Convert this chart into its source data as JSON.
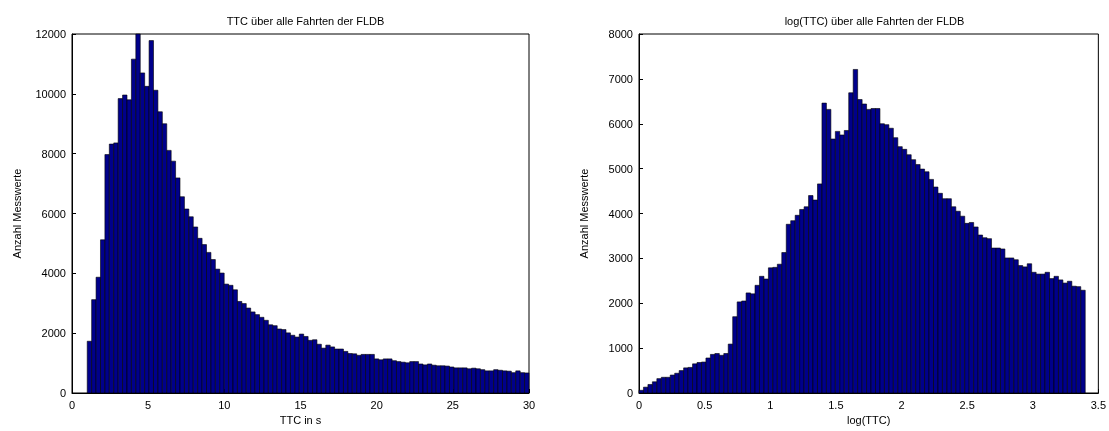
{
  "chart_data": [
    {
      "type": "histogram",
      "title": "TTC über alle Fahrten der FLDB",
      "xlabel": "TTC in s",
      "ylabel": "Anzahl Messwerte",
      "color": "#00008b",
      "grid": false,
      "bins": [
        1,
        1.29,
        1.58,
        1.87,
        2.16,
        2.45,
        2.74,
        3.03,
        3.32,
        3.61,
        3.9,
        4.19,
        4.48,
        4.77,
        5.06,
        5.35,
        5.64,
        5.93,
        6.22,
        6.51,
        6.8,
        7.09,
        7.38,
        7.67,
        7.96,
        8.25,
        8.54,
        8.83,
        9.12,
        9.41,
        9.7,
        9.99,
        10.28,
        10.57,
        10.86,
        11.15,
        11.44,
        11.73,
        12.02,
        12.31,
        12.6,
        12.89,
        13.18,
        13.47,
        13.76,
        14.05,
        14.34,
        14.63,
        14.92,
        15.21,
        15.5,
        15.79,
        16.08,
        16.37,
        16.66,
        16.95,
        17.24,
        17.53,
        17.82,
        18.11,
        18.4,
        18.69,
        18.98,
        19.27,
        19.56,
        19.85,
        20.14,
        20.43,
        20.72,
        21.01,
        21.3,
        21.59,
        21.88,
        22.17,
        22.46,
        22.75,
        23.04,
        23.33,
        23.62,
        23.91,
        24.2,
        24.49,
        24.78,
        25.07,
        25.36,
        25.65,
        25.94,
        26.23,
        26.52,
        26.81,
        27.1,
        27.39,
        27.68,
        27.97,
        28.26,
        28.55,
        28.84,
        29.13,
        29.42,
        29.71,
        30
      ],
      "values": [
        1730,
        3120,
        3870,
        5120,
        7970,
        8320,
        8360,
        9840,
        9960,
        9800,
        11160,
        12000,
        10700,
        10250,
        11780,
        10120,
        9400,
        9000,
        8110,
        7750,
        7190,
        6560,
        6150,
        5890,
        5550,
        5170,
        4960,
        4700,
        4460,
        4140,
        4010,
        3640,
        3600,
        3450,
        3060,
        2990,
        2840,
        2710,
        2620,
        2530,
        2430,
        2280,
        2250,
        2140,
        2120,
        2010,
        1930,
        1870,
        1970,
        1890,
        1760,
        1780,
        1630,
        1500,
        1600,
        1540,
        1470,
        1470,
        1390,
        1320,
        1310,
        1260,
        1290,
        1290,
        1290,
        1140,
        1110,
        1140,
        1140,
        1080,
        1050,
        1030,
        1010,
        1050,
        1050,
        970,
        940,
        970,
        930,
        910,
        910,
        900,
        870,
        840,
        840,
        840,
        810,
        830,
        810,
        780,
        740,
        740,
        780,
        760,
        740,
        730,
        680,
        740,
        680,
        670
      ],
      "xlim": [
        0,
        30
      ],
      "xticks": [
        0,
        5,
        10,
        15,
        20,
        25,
        30
      ],
      "ylim": [
        0,
        12000
      ],
      "yticks": [
        0,
        2000,
        4000,
        6000,
        8000,
        10000,
        12000
      ]
    },
    {
      "type": "histogram",
      "title": "log(TTC) über alle Fahrten der FLDB",
      "xlabel": "log(TTC)",
      "ylabel": "Anzahl Messwerte",
      "color": "#00008b",
      "grid": false,
      "bins": [
        0,
        0.034,
        0.068,
        0.102,
        0.136,
        0.17,
        0.204,
        0.238,
        0.272,
        0.306,
        0.34,
        0.374,
        0.408,
        0.442,
        0.476,
        0.51,
        0.544,
        0.578,
        0.612,
        0.646,
        0.68,
        0.714,
        0.748,
        0.782,
        0.816,
        0.85,
        0.884,
        0.918,
        0.952,
        0.986,
        1.02,
        1.054,
        1.088,
        1.122,
        1.156,
        1.19,
        1.224,
        1.258,
        1.292,
        1.326,
        1.36,
        1.394,
        1.428,
        1.462,
        1.496,
        1.53,
        1.564,
        1.598,
        1.632,
        1.666,
        1.7,
        1.734,
        1.768,
        1.802,
        1.836,
        1.87,
        1.904,
        1.938,
        1.972,
        2.006,
        2.04,
        2.074,
        2.108,
        2.142,
        2.176,
        2.21,
        2.244,
        2.278,
        2.312,
        2.346,
        2.38,
        2.414,
        2.448,
        2.482,
        2.516,
        2.55,
        2.584,
        2.618,
        2.652,
        2.686,
        2.72,
        2.754,
        2.788,
        2.822,
        2.856,
        2.89,
        2.924,
        2.958,
        2.992,
        3.026,
        3.06,
        3.094,
        3.128,
        3.162,
        3.196,
        3.23,
        3.264,
        3.298,
        3.332,
        3.366,
        3.4
      ],
      "values": [
        60,
        130,
        190,
        250,
        320,
        350,
        350,
        400,
        440,
        500,
        560,
        570,
        650,
        680,
        690,
        780,
        860,
        880,
        840,
        880,
        1090,
        1700,
        2030,
        2050,
        2230,
        2210,
        2400,
        2600,
        2540,
        2790,
        2800,
        2870,
        3130,
        3760,
        3840,
        3960,
        4090,
        4150,
        4400,
        4300,
        4660,
        6460,
        6320,
        5660,
        5830,
        5750,
        5850,
        6690,
        7210,
        6540,
        6440,
        6320,
        6340,
        6340,
        6000,
        5980,
        5900,
        5690,
        5490,
        5430,
        5310,
        5200,
        5090,
        4990,
        4930,
        4760,
        4590,
        4450,
        4330,
        4330,
        4150,
        4050,
        3940,
        3780,
        3800,
        3700,
        3520,
        3460,
        3440,
        3230,
        3230,
        3210,
        3010,
        3010,
        2970,
        2840,
        2810,
        2880,
        2690,
        2650,
        2650,
        2690,
        2550,
        2600,
        2520,
        2450,
        2490,
        2380,
        2370,
        2290
      ],
      "xlim": [
        0,
        3.5
      ],
      "xticks": [
        0,
        0.5,
        1,
        1.5,
        2,
        2.5,
        3,
        3.5
      ],
      "ylim": [
        0,
        8000
      ],
      "yticks": [
        0,
        1000,
        2000,
        3000,
        4000,
        5000,
        6000,
        7000,
        8000
      ]
    }
  ]
}
